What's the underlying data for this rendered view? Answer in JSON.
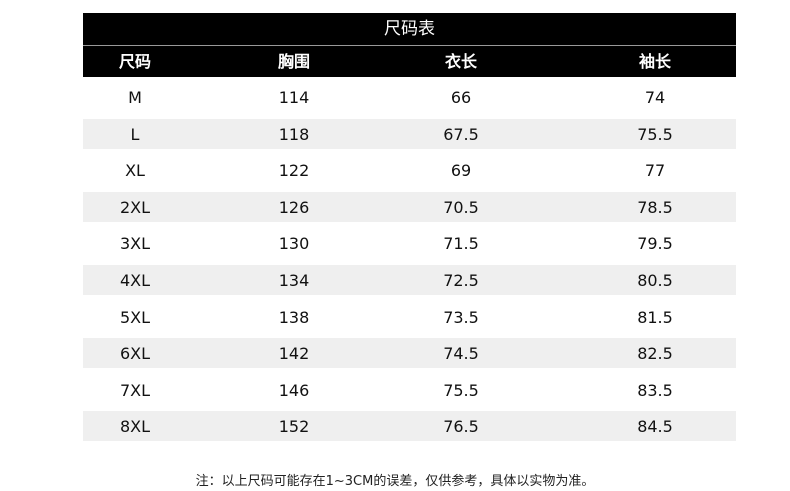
{
  "title": "尺码表",
  "headers": [
    "尺码",
    "胸围",
    "衣长",
    "袖长"
  ],
  "rows": [
    [
      "M",
      "114",
      "66",
      "74"
    ],
    [
      "L",
      "118",
      "67.5",
      "75.5"
    ],
    [
      "XL",
      "122",
      "69",
      "77"
    ],
    [
      "2XL",
      "126",
      "70.5",
      "78.5"
    ],
    [
      "3XL",
      "130",
      "71.5",
      "79.5"
    ],
    [
      "4XL",
      "134",
      "72.5",
      "80.5"
    ],
    [
      "5XL",
      "138",
      "73.5",
      "81.5"
    ],
    [
      "6XL",
      "142",
      "74.5",
      "82.5"
    ],
    [
      "7XL",
      "146",
      "75.5",
      "83.5"
    ],
    [
      "8XL",
      "152",
      "76.5",
      "84.5"
    ]
  ],
  "note": "注：以上尺码可能存在1~3CM的误差，仅供参考，具体以实物为准。",
  "colors": {
    "header_bg": "#000000",
    "alt_row_bg": "#efefef"
  }
}
